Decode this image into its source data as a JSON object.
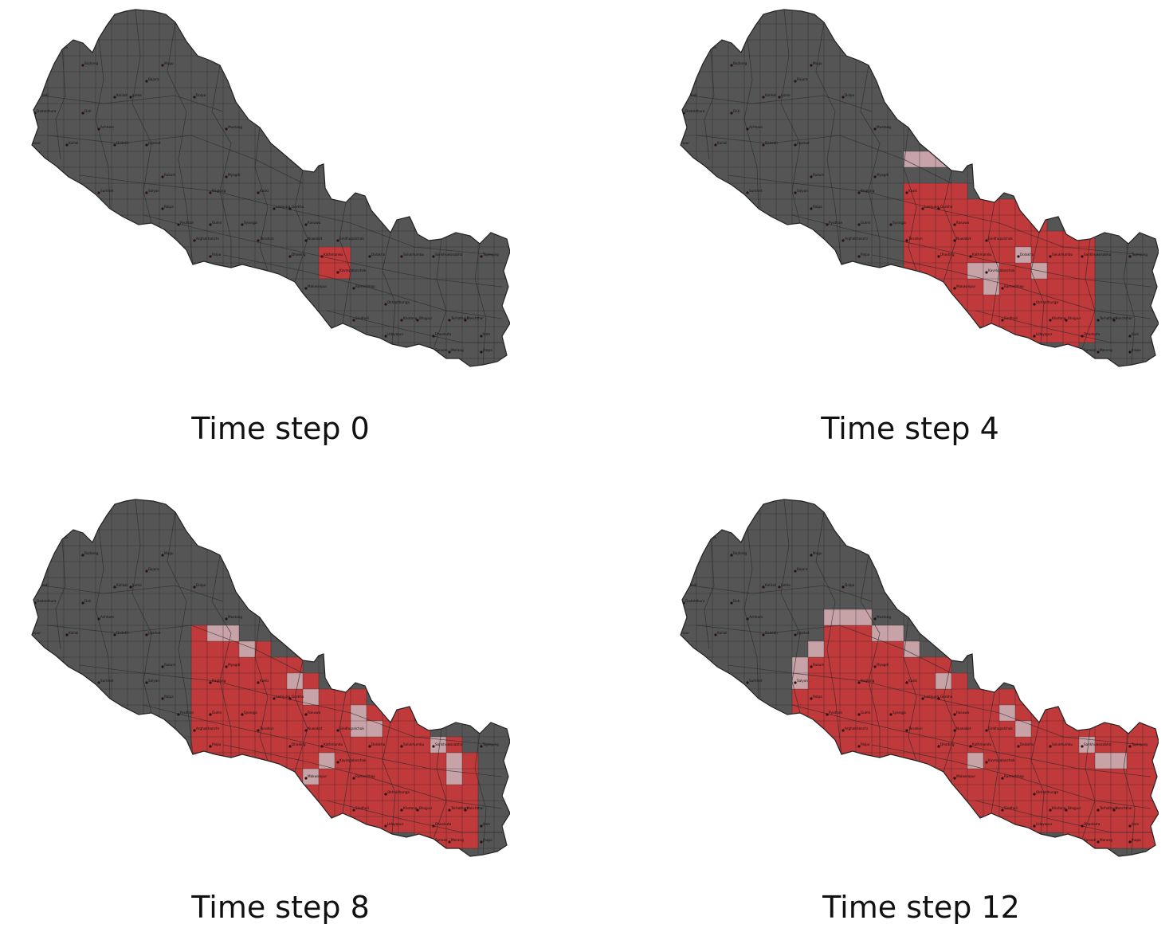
{
  "legend_colors": {
    "land": "#555555",
    "infected": "#c0393b",
    "partial": "#c7a3a8",
    "border": "#222222",
    "grid": "#1e1e1e"
  },
  "grid": {
    "cols": 31,
    "rows": 22
  },
  "panels": [
    {
      "caption": "Time step 0",
      "infected": [
        [
          19,
          15
        ],
        [
          20,
          15
        ],
        [
          19,
          16
        ],
        [
          20,
          16
        ]
      ],
      "partial": []
    },
    {
      "caption": "Time step 4",
      "infected_cols": [
        [
          15,
          11,
          17
        ],
        [
          16,
          11,
          17
        ],
        [
          17,
          11,
          17
        ],
        [
          18,
          11,
          18
        ],
        [
          19,
          12,
          19
        ],
        [
          20,
          12,
          20
        ],
        [
          21,
          12,
          20
        ],
        [
          22,
          12,
          20
        ],
        [
          23,
          13,
          20
        ],
        [
          24,
          14,
          20
        ],
        [
          25,
          14,
          21
        ],
        [
          26,
          14,
          20
        ]
      ],
      "partial": [
        [
          15,
          9
        ],
        [
          16,
          9
        ],
        [
          17,
          9
        ],
        [
          19,
          16
        ],
        [
          20,
          16
        ],
        [
          20,
          17
        ],
        [
          22,
          15
        ],
        [
          23,
          16
        ]
      ]
    },
    {
      "caption": "Time step 8",
      "infected_cols": [
        [
          11,
          8,
          17
        ],
        [
          12,
          8,
          17
        ],
        [
          13,
          8,
          17
        ],
        [
          14,
          9,
          17
        ],
        [
          15,
          9,
          17
        ],
        [
          16,
          10,
          17
        ],
        [
          17,
          10,
          18
        ],
        [
          18,
          11,
          18
        ],
        [
          19,
          12,
          19
        ],
        [
          20,
          12,
          20
        ],
        [
          21,
          12,
          20
        ],
        [
          22,
          13,
          20
        ],
        [
          23,
          13,
          20
        ],
        [
          24,
          13,
          20
        ],
        [
          25,
          14,
          21
        ],
        [
          26,
          15,
          21
        ],
        [
          27,
          15,
          21
        ],
        [
          28,
          16,
          21
        ]
      ],
      "partial": [
        [
          12,
          8
        ],
        [
          13,
          8
        ],
        [
          14,
          9
        ],
        [
          17,
          11
        ],
        [
          18,
          12
        ],
        [
          21,
          13
        ],
        [
          21,
          14
        ],
        [
          22,
          14
        ],
        [
          26,
          15
        ],
        [
          27,
          16
        ],
        [
          27,
          17
        ],
        [
          19,
          16
        ],
        [
          18,
          17
        ]
      ]
    },
    {
      "caption": "Time step 12",
      "infected_cols": [
        [
          8,
          10,
          16
        ],
        [
          9,
          9,
          16
        ],
        [
          10,
          7,
          17
        ],
        [
          11,
          7,
          17
        ],
        [
          12,
          7,
          17
        ],
        [
          13,
          8,
          17
        ],
        [
          14,
          8,
          17
        ],
        [
          15,
          9,
          17
        ],
        [
          16,
          10,
          17
        ],
        [
          17,
          10,
          18
        ],
        [
          18,
          11,
          18
        ],
        [
          19,
          12,
          19
        ],
        [
          20,
          12,
          20
        ],
        [
          21,
          12,
          20
        ],
        [
          22,
          12,
          20
        ],
        [
          23,
          13,
          20
        ],
        [
          24,
          13,
          20
        ],
        [
          25,
          14,
          21
        ],
        [
          26,
          14,
          21
        ],
        [
          27,
          14,
          21
        ],
        [
          28,
          14,
          21
        ],
        [
          29,
          14,
          21
        ],
        [
          30,
          14,
          21
        ]
      ],
      "partial": [
        [
          8,
          10
        ],
        [
          8,
          11
        ],
        [
          9,
          9
        ],
        [
          10,
          7
        ],
        [
          11,
          7
        ],
        [
          12,
          7
        ],
        [
          13,
          8
        ],
        [
          14,
          8
        ],
        [
          15,
          9
        ],
        [
          17,
          11
        ],
        [
          21,
          13
        ],
        [
          22,
          14
        ],
        [
          26,
          15
        ],
        [
          27,
          16
        ],
        [
          28,
          16
        ],
        [
          19,
          16
        ]
      ]
    }
  ],
  "district_labels": [
    {
      "name": "Humla",
      "c": 12,
      "r": 1
    },
    {
      "name": "Darchula",
      "c": 2,
      "r": 2
    },
    {
      "name": "Bajhang",
      "c": 4,
      "r": 3
    },
    {
      "name": "Bajura",
      "c": 8,
      "r": 4
    },
    {
      "name": "Mugu",
      "c": 9,
      "r": 3
    },
    {
      "name": "Baitadi",
      "c": 1,
      "r": 5
    },
    {
      "name": "Doti",
      "c": 4,
      "r": 6
    },
    {
      "name": "Kalikot",
      "c": 6,
      "r": 5
    },
    {
      "name": "Jumla",
      "c": 7,
      "r": 5
    },
    {
      "name": "Dolpa",
      "c": 11,
      "r": 5
    },
    {
      "name": "Dadeldhura",
      "c": 1,
      "r": 6
    },
    {
      "name": "Achham",
      "c": 5,
      "r": 7
    },
    {
      "name": "Dailekh",
      "c": 6,
      "r": 8
    },
    {
      "name": "Jajarkot",
      "c": 8,
      "r": 8
    },
    {
      "name": "Mustang",
      "c": 13,
      "r": 7
    },
    {
      "name": "Kanchanpur",
      "c": 0,
      "r": 8
    },
    {
      "name": "Kailali",
      "c": 3,
      "r": 8
    },
    {
      "name": "Rukum",
      "c": 9,
      "r": 10
    },
    {
      "name": "Myagdi",
      "c": 13,
      "r": 10
    },
    {
      "name": "Surkhet",
      "c": 5,
      "r": 11
    },
    {
      "name": "Salyan",
      "c": 8,
      "r": 11
    },
    {
      "name": "Baglung",
      "c": 12,
      "r": 11
    },
    {
      "name": "Kaski",
      "c": 15,
      "r": 11
    },
    {
      "name": "Bardiya",
      "c": 4,
      "r": 12
    },
    {
      "name": "Rolpa",
      "c": 9,
      "r": 12
    },
    {
      "name": "Lamjung",
      "c": 16,
      "r": 12
    },
    {
      "name": "Gorkha",
      "c": 17,
      "r": 12
    },
    {
      "name": "Banke",
      "c": 5,
      "r": 13
    },
    {
      "name": "Pyuthan",
      "c": 10,
      "r": 13
    },
    {
      "name": "Syangja",
      "c": 14,
      "r": 13
    },
    {
      "name": "Tanahun",
      "c": 15,
      "r": 14
    },
    {
      "name": "Dang",
      "c": 8,
      "r": 14
    },
    {
      "name": "Arghakhanchi",
      "c": 11,
      "r": 14
    },
    {
      "name": "Gulmi",
      "c": 12,
      "r": 13
    },
    {
      "name": "Palpa",
      "c": 12,
      "r": 15
    },
    {
      "name": "Nuwakot",
      "c": 18,
      "r": 14
    },
    {
      "name": "Rasuwa",
      "c": 18,
      "r": 13
    },
    {
      "name": "Sindhupalchok",
      "c": 20,
      "r": 14
    },
    {
      "name": "Dolakha",
      "c": 22,
      "r": 15
    },
    {
      "name": "Kapilbastu",
      "c": 10,
      "r": 16
    },
    {
      "name": "Rupandehi",
      "c": 12,
      "r": 16
    },
    {
      "name": "Nawalparasi",
      "c": 14,
      "r": 16
    },
    {
      "name": "Dhading",
      "c": 17,
      "r": 15
    },
    {
      "name": "Kathmandu",
      "c": 19,
      "r": 15
    },
    {
      "name": "Chitawan",
      "c": 15,
      "r": 17
    },
    {
      "name": "Makwanpur",
      "c": 18,
      "r": 17
    },
    {
      "name": "Kavrepalanchok",
      "c": 20,
      "r": 16
    },
    {
      "name": "Ramechhap",
      "c": 21,
      "r": 17
    },
    {
      "name": "Solukhumbu",
      "c": 24,
      "r": 15
    },
    {
      "name": "Sankhuwasabha",
      "c": 26,
      "r": 15
    },
    {
      "name": "Taplejung",
      "c": 29,
      "r": 15
    },
    {
      "name": "Okhaldhunga",
      "c": 23,
      "r": 18
    },
    {
      "name": "Sindhuli",
      "c": 21,
      "r": 19
    },
    {
      "name": "Khotang",
      "c": 24,
      "r": 19
    },
    {
      "name": "Bhojpur",
      "c": 25,
      "r": 19
    },
    {
      "name": "Terhathum",
      "c": 27,
      "r": 19
    },
    {
      "name": "Panchthar",
      "c": 28,
      "r": 19
    },
    {
      "name": "Bara",
      "c": 18,
      "r": 20
    },
    {
      "name": "Parsa",
      "c": 17,
      "r": 20
    },
    {
      "name": "Rautahat",
      "c": 19,
      "r": 20
    },
    {
      "name": "Sarlahi",
      "c": 20,
      "r": 20
    },
    {
      "name": "Dhankuta",
      "c": 26,
      "r": 20
    },
    {
      "name": "Ilam",
      "c": 29,
      "r": 20
    },
    {
      "name": "Udayapur",
      "c": 23,
      "r": 20
    },
    {
      "name": "Mahottari",
      "c": 21,
      "r": 21
    },
    {
      "name": "Dhanusa",
      "c": 22,
      "r": 21
    },
    {
      "name": "Siraha",
      "c": 23,
      "r": 21
    },
    {
      "name": "Saptari",
      "c": 24,
      "r": 21
    },
    {
      "name": "Sunsari",
      "c": 26,
      "r": 21
    },
    {
      "name": "Morang",
      "c": 27,
      "r": 21
    },
    {
      "name": "Jhapa",
      "c": 29,
      "r": 21
    }
  ]
}
